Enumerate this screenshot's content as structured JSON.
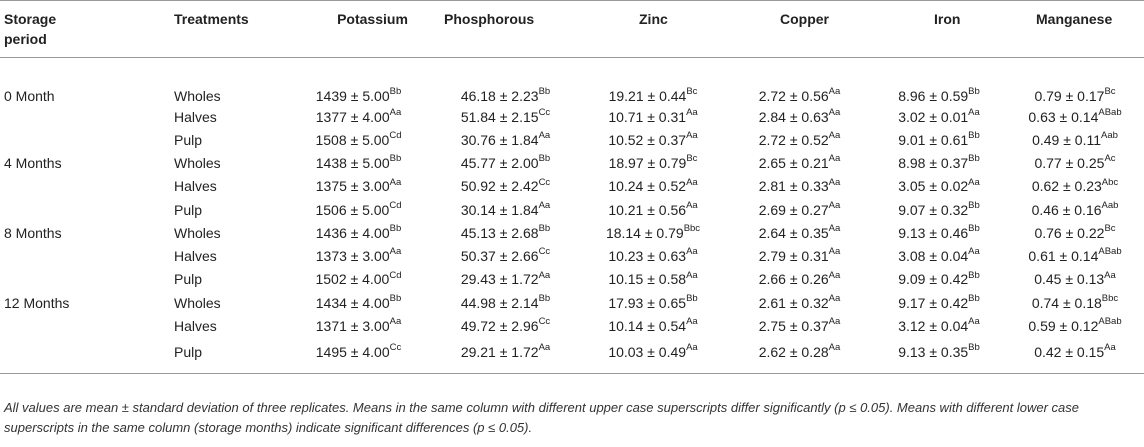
{
  "headers": {
    "storage_period": "Storage period",
    "treatments": "Treatments",
    "potassium": "Potassium",
    "phosphorous": "Phosphorous",
    "zinc": "Zinc",
    "copper": "Copper",
    "iron": "Iron",
    "manganese": "Manganese"
  },
  "rows": [
    {
      "period": "0 Month",
      "treatment": "Wholes",
      "cells": [
        {
          "v": "1439 ± 5.00",
          "s": "Bb"
        },
        {
          "v": "46.18 ± 2.23",
          "s": "Bb"
        },
        {
          "v": "19.21 ± 0.44",
          "s": "Bc"
        },
        {
          "v": "2.72 ± 0.56",
          "s": "Aa"
        },
        {
          "v": "8.96 ± 0.59",
          "s": "Bb"
        },
        {
          "v": "0.79 ± 0.17",
          "s": "Bc"
        }
      ]
    },
    {
      "period": "",
      "treatment": "Halves",
      "cells": [
        {
          "v": "1377 ± 4.00",
          "s": "Aa"
        },
        {
          "v": "51.84 ± 2.15",
          "s": "Cc"
        },
        {
          "v": "10.71 ± 0.31",
          "s": "Aa"
        },
        {
          "v": "2.84 ± 0.63",
          "s": "Aa"
        },
        {
          "v": "3.02 ± 0.01",
          "s": "Aa"
        },
        {
          "v": "0.63 ± 0.14",
          "s": "ABab"
        }
      ]
    },
    {
      "period": "",
      "treatment": "Pulp",
      "cells": [
        {
          "v": "1508 ± 5.00",
          "s": "Cd"
        },
        {
          "v": "30.76 ± 1.84",
          "s": "Aa"
        },
        {
          "v": "10.52 ± 0.37",
          "s": "Aa"
        },
        {
          "v": "2.72 ± 0.52",
          "s": "Aa"
        },
        {
          "v": "9.01 ± 0.61",
          "s": "Bb"
        },
        {
          "v": "0.49 ± 0.11",
          "s": "Aab"
        }
      ]
    },
    {
      "period": "4 Months",
      "treatment": "Wholes",
      "cells": [
        {
          "v": "1438 ± 5.00",
          "s": "Bb"
        },
        {
          "v": "45.77 ± 2.00",
          "s": "Bb"
        },
        {
          "v": "18.97 ± 0.79",
          "s": "Bc"
        },
        {
          "v": "2.65 ± 0.21",
          "s": "Aa"
        },
        {
          "v": "8.98 ± 0.37",
          "s": "Bb"
        },
        {
          "v": "0.77 ± 0.25",
          "s": "Ac"
        }
      ]
    },
    {
      "period": "",
      "treatment": "Halves",
      "cells": [
        {
          "v": "1375 ± 3.00",
          "s": "Aa"
        },
        {
          "v": "50.92 ± 2.42",
          "s": "Cc"
        },
        {
          "v": "10.24 ± 0.52",
          "s": "Aa"
        },
        {
          "v": "2.81 ± 0.33",
          "s": "Aa"
        },
        {
          "v": "3.05 ± 0.02",
          "s": "Aa"
        },
        {
          "v": "0.62 ± 0.23",
          "s": "Abc"
        }
      ]
    },
    {
      "period": "",
      "treatment": "Pulp",
      "cells": [
        {
          "v": "1506 ± 5.00",
          "s": "Cd"
        },
        {
          "v": "30.14 ± 1.84",
          "s": "Aa"
        },
        {
          "v": "10.21 ± 0.56",
          "s": "Aa"
        },
        {
          "v": "2.69 ± 0.27",
          "s": "Aa"
        },
        {
          "v": "9.07 ± 0.32",
          "s": "Bb"
        },
        {
          "v": "0.46 ± 0.16",
          "s": "Aab"
        }
      ]
    },
    {
      "period": "8 Months",
      "treatment": "Wholes",
      "cells": [
        {
          "v": "1436 ± 4.00",
          "s": "Bb"
        },
        {
          "v": "45.13 ± 2.68",
          "s": "Bb"
        },
        {
          "v": "18.14 ± 0.79",
          "s": "Bbc"
        },
        {
          "v": "2.64 ± 0.35",
          "s": "Aa"
        },
        {
          "v": "9.13 ± 0.46",
          "s": "Bb"
        },
        {
          "v": "0.76 ± 0.22",
          "s": "Bc"
        }
      ]
    },
    {
      "period": "",
      "treatment": "Halves",
      "cells": [
        {
          "v": "1373 ± 3.00",
          "s": "Aa"
        },
        {
          "v": "50.37 ± 2.66",
          "s": "Cc"
        },
        {
          "v": "10.23 ± 0.63",
          "s": "Aa"
        },
        {
          "v": "2.79 ± 0.31",
          "s": "Aa"
        },
        {
          "v": "3.08 ± 0.04",
          "s": "Aa"
        },
        {
          "v": "0.61 ± 0.14",
          "s": "ABab"
        }
      ]
    },
    {
      "period": "",
      "treatment": "Pulp",
      "cells": [
        {
          "v": "1502 ± 4.00",
          "s": "Cd"
        },
        {
          "v": "29.43 ± 1.72",
          "s": "Aa"
        },
        {
          "v": "10.15 ± 0.58",
          "s": "Aa"
        },
        {
          "v": "2.66 ± 0.26",
          "s": "Aa"
        },
        {
          "v": "9.09 ± 0.42",
          "s": "Bb"
        },
        {
          "v": "0.45 ± 0.13",
          "s": "Aa"
        }
      ]
    },
    {
      "period": "12 Months",
      "treatment": "Wholes",
      "cells": [
        {
          "v": "1434 ± 4.00",
          "s": "Bb"
        },
        {
          "v": "44.98 ± 2.14",
          "s": "Bb"
        },
        {
          "v": "17.93 ± 0.65",
          "s": "Bb"
        },
        {
          "v": "2.61 ± 0.32",
          "s": "Aa"
        },
        {
          "v": "9.17 ± 0.42",
          "s": "Bb"
        },
        {
          "v": "0.74 ± 0.18",
          "s": "Bbc"
        }
      ]
    },
    {
      "period": "",
      "treatment": "Halves",
      "cells": [
        {
          "v": "1371 ± 3.00",
          "s": "Aa"
        },
        {
          "v": "49.72 ± 2.96",
          "s": "Cc"
        },
        {
          "v": "10.14 ± 0.54",
          "s": "Aa"
        },
        {
          "v": "2.75 ± 0.37",
          "s": "Aa"
        },
        {
          "v": "3.12 ± 0.04",
          "s": "Aa"
        },
        {
          "v": "0.59 ± 0.12",
          "s": "ABab"
        }
      ]
    },
    {
      "period": "",
      "treatment": "Pulp",
      "cells": [
        {
          "v": "1495 ± 4.00",
          "s": "Cc"
        },
        {
          "v": "29.21 ± 1.72",
          "s": "Aa"
        },
        {
          "v": "10.03 ± 0.49",
          "s": "Aa"
        },
        {
          "v": "2.62 ± 0.28",
          "s": "Aa"
        },
        {
          "v": "9.13 ± 0.35",
          "s": "Bb"
        },
        {
          "v": "0.42 ± 0.15",
          "s": "Aa"
        }
      ]
    }
  ],
  "footnote": "All values are mean ± standard deviation of three replicates. Means in the same column with different upper case superscripts differ significantly (p ≤ 0.05). Means with different lower case superscripts in the same column (storage months) indicate significant differences (p ≤ 0.05)."
}
